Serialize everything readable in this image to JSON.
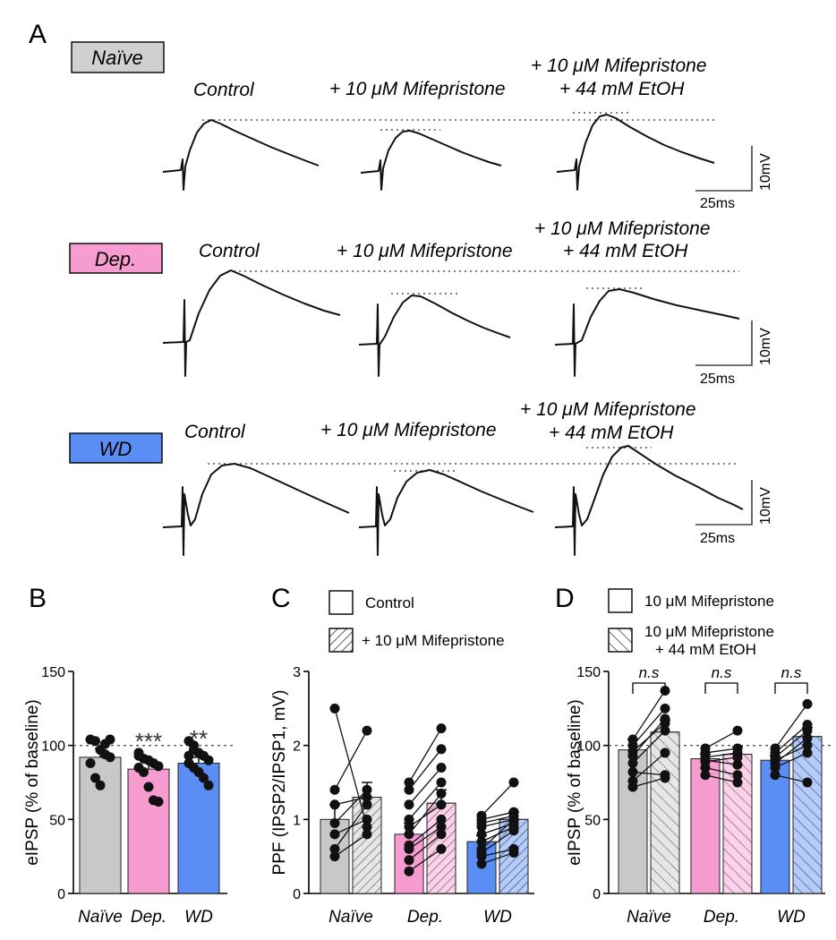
{
  "panels": {
    "A": "A",
    "B": "B",
    "C": "C",
    "D": "D"
  },
  "colors": {
    "naive": "#c8c8c8",
    "dep": "#f79cd0",
    "wd": "#5b8ef5",
    "ink": "#111111"
  },
  "traces_panel": {
    "scale_time": "25ms",
    "scale_voltage": "10mV",
    "rows": [
      {
        "group": "Naïve",
        "color": "#d0d0d0",
        "labels": [
          "Control",
          "+ 10 μM Mifepristone",
          "+ 10 μM Mifepristone",
          "+ 44 mM EtOH"
        ]
      },
      {
        "group": "Dep.",
        "color": "#f79cd0",
        "labels": [
          "Control",
          "+ 10 μM Mifepristone",
          "+ 10 μM Mifepristone",
          "+ 44 mM EtOH"
        ]
      },
      {
        "group": "WD",
        "color": "#5b8ef5",
        "labels": [
          "Control",
          "+ 10 μM Mifepristone",
          "+ 10 μM Mifepristone",
          "+ 44 mM EtOH"
        ]
      }
    ]
  },
  "chart_data": [
    {
      "id": "B",
      "type": "bar",
      "ylabel": "eIPSP (% of baseline)",
      "ylim": [
        0,
        150
      ],
      "yticks": [
        0,
        50,
        100,
        150
      ],
      "reference_line": 100,
      "categories": [
        "Naïve",
        "Dep.",
        "WD"
      ],
      "values": [
        92,
        84,
        88
      ],
      "sem": [
        6,
        6,
        4
      ],
      "significance": [
        "",
        "***",
        "**"
      ],
      "points": [
        [
          104,
          103,
          97,
          94,
          92,
          88,
          78,
          73,
          101,
          104
        ],
        [
          95,
          91,
          90,
          88,
          86,
          85,
          82,
          72,
          63,
          62,
          93
        ],
        [
          103,
          97,
          95,
          93,
          90,
          88,
          85,
          82,
          78,
          73,
          93,
          100
        ]
      ]
    },
    {
      "id": "C",
      "type": "bar",
      "ylabel": "PPF (IPSP2/IPSP1, mV)",
      "ylim": [
        0,
        3
      ],
      "yticks": [
        0,
        1,
        2,
        3
      ],
      "categories": [
        "Naïve",
        "Dep.",
        "WD"
      ],
      "legend": [
        "Control",
        "+ 10 μM Mifepristone"
      ],
      "series": [
        {
          "name": "Control",
          "values": [
            1.0,
            0.8,
            0.7
          ]
        },
        {
          "name": "+ 10 μM Mifepristone",
          "values": [
            1.3,
            1.22,
            1.0
          ]
        }
      ],
      "sem": [
        [
          0.2,
          0.15,
          0.08
        ],
        [
          0.2,
          0.18,
          0.1
        ]
      ],
      "pairs": [
        [
          [
            2.5,
            0.9
          ],
          [
            1.4,
            2.2
          ],
          [
            1.2,
            1.3
          ],
          [
            0.95,
            1.4
          ],
          [
            0.8,
            1.0
          ],
          [
            0.6,
            1.2
          ],
          [
            0.5,
            0.8
          ]
        ],
        [
          [
            1.5,
            2.23
          ],
          [
            1.4,
            1.95
          ],
          [
            1.2,
            1.7
          ],
          [
            1.0,
            1.5
          ],
          [
            0.9,
            1.2
          ],
          [
            0.8,
            1.35
          ],
          [
            0.65,
            1.0
          ],
          [
            0.6,
            0.9
          ],
          [
            0.45,
            0.8
          ],
          [
            0.3,
            0.6
          ]
        ],
        [
          [
            1.05,
            1.5
          ],
          [
            1.0,
            1.1
          ],
          [
            0.95,
            1.05
          ],
          [
            0.9,
            1.0
          ],
          [
            0.8,
            0.95
          ],
          [
            0.7,
            0.9
          ],
          [
            0.6,
            1.0
          ],
          [
            0.55,
            0.85
          ],
          [
            0.5,
            0.6
          ],
          [
            0.4,
            0.55
          ]
        ]
      ]
    },
    {
      "id": "D",
      "type": "bar",
      "ylabel": "eIPSP (% of baseline)",
      "ylim": [
        0,
        150
      ],
      "yticks": [
        0,
        50,
        100,
        150
      ],
      "reference_line": 100,
      "categories": [
        "Naïve",
        "Dep.",
        "WD"
      ],
      "legend": [
        "10 μM Mifepristone",
        "10 μM Mifepristone",
        "+ 44 mM EtOH"
      ],
      "series": [
        {
          "name": "10 μM Mifepristone",
          "values": [
            97,
            91,
            90
          ]
        },
        {
          "name": "10 μM Mifepristone + 44 mM EtOH",
          "values": [
            109,
            94,
            106
          ]
        }
      ],
      "sem": [
        [
          7,
          3,
          3
        ],
        [
          8,
          5,
          6
        ]
      ],
      "significance": [
        "n.s",
        "n.s",
        "n.s"
      ],
      "pairs": [
        [
          [
            104,
            137
          ],
          [
            100,
            125
          ],
          [
            96,
            115
          ],
          [
            93,
            118
          ],
          [
            88,
            110
          ],
          [
            82,
            80
          ],
          [
            76,
            95
          ],
          [
            72,
            78
          ]
        ],
        [
          [
            98,
            110
          ],
          [
            95,
            98
          ],
          [
            92,
            95
          ],
          [
            90,
            87
          ],
          [
            89,
            92
          ],
          [
            85,
            80
          ],
          [
            80,
            75
          ]
        ],
        [
          [
            98,
            128
          ],
          [
            95,
            114
          ],
          [
            92,
            110
          ],
          [
            90,
            100
          ],
          [
            88,
            105
          ],
          [
            85,
            95
          ],
          [
            80,
            75
          ]
        ]
      ]
    }
  ]
}
